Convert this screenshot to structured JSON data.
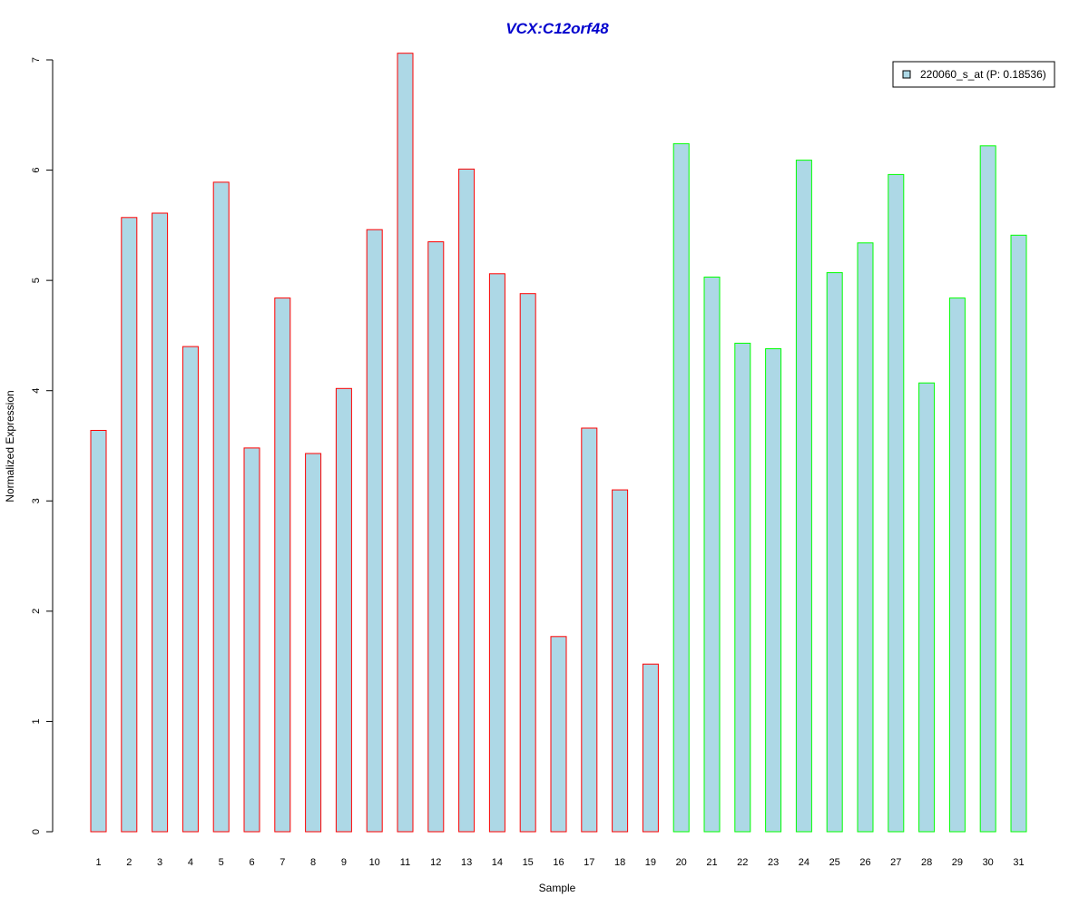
{
  "chart_data": {
    "type": "bar",
    "title": "VCX:C12orf48",
    "xlabel": "Sample",
    "ylabel": "Normalized Expression",
    "ylim": [
      0,
      7
    ],
    "yticks": [
      "0",
      "1",
      "2",
      "3",
      "4",
      "5",
      "6",
      "7"
    ],
    "grid": false,
    "legend_position": "top-right",
    "categories": [
      "1",
      "2",
      "3",
      "4",
      "5",
      "6",
      "7",
      "8",
      "9",
      "10",
      "11",
      "12",
      "13",
      "14",
      "15",
      "16",
      "17",
      "18",
      "19",
      "20",
      "21",
      "22",
      "23",
      "24",
      "25",
      "26",
      "27",
      "28",
      "29",
      "30",
      "31"
    ],
    "series": [
      {
        "name": "220060_s_at (P: 0.18536)",
        "values": [
          3.64,
          5.57,
          5.61,
          4.4,
          5.89,
          3.48,
          4.84,
          3.43,
          4.02,
          5.46,
          7.06,
          5.35,
          6.01,
          5.06,
          4.88,
          1.77,
          3.66,
          3.1,
          1.52,
          6.24,
          5.03,
          4.43,
          4.38,
          6.09,
          5.07,
          5.34,
          5.96,
          4.07,
          4.84,
          6.22,
          5.41
        ],
        "groups": [
          1,
          1,
          1,
          1,
          1,
          1,
          1,
          1,
          1,
          1,
          1,
          1,
          1,
          1,
          1,
          1,
          1,
          1,
          1,
          2,
          2,
          2,
          2,
          2,
          2,
          2,
          2,
          2,
          2,
          2,
          2
        ]
      }
    ],
    "colors": {
      "bar_fill": "#add8e6",
      "group1_border": "#ff0000",
      "group2_border": "#00ff00",
      "title": "#0000cd"
    }
  }
}
